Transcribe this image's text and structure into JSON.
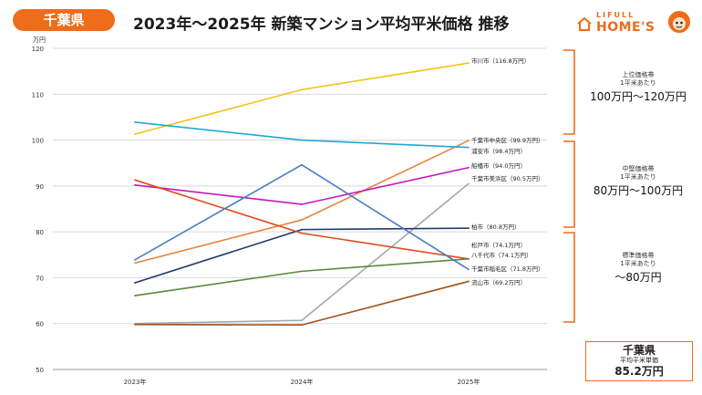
{
  "header": {
    "badge": "千葉県",
    "title": "2023年～2025年 新築マンション平均平米価格 推移"
  },
  "logo": {
    "line1": "LIFULL",
    "line2": "HOME'S",
    "brand_color": "#ee6c1a"
  },
  "chart_data": {
    "type": "line",
    "title": "2023年～2025年 新築マンション平均平米価格 推移",
    "unit_label": "万円",
    "categories": [
      "2023年",
      "2024年",
      "2025年"
    ],
    "ylim": [
      50,
      120
    ],
    "yticks": [
      50,
      60,
      70,
      80,
      90,
      100,
      110,
      120
    ],
    "grid": "horizontal",
    "series": [
      {
        "name": "市川市",
        "values": [
          101.3,
          111.0,
          116.8
        ],
        "end_label": "市川市（116.8万円）",
        "color": "#f0c419"
      },
      {
        "name": "千葉市中央区",
        "values": [
          73.2,
          82.6,
          99.9
        ],
        "end_label": "千葉市中央区（99.9万円）",
        "color": "#e8843c"
      },
      {
        "name": "浦安市",
        "values": [
          103.9,
          100.0,
          98.4
        ],
        "end_label": "浦安市（98.4万円）",
        "color": "#1fa8d8"
      },
      {
        "name": "船橋市",
        "values": [
          90.2,
          86.0,
          94.0
        ],
        "end_label": "船橋市（94.0万円）",
        "color": "#c418c4"
      },
      {
        "name": "千葉市美浜区",
        "values": [
          60.0,
          60.7,
          90.5
        ],
        "end_label": "千葉市美浜区（90.5万円）",
        "color": "#a8a8a8"
      },
      {
        "name": "柏市",
        "values": [
          68.9,
          80.5,
          80.8
        ],
        "end_label": "柏市（80.8万円）",
        "color": "#1f3a6e"
      },
      {
        "name": "松戸市",
        "values": [
          91.3,
          79.7,
          74.1
        ],
        "end_label": "松戸市（74.1万円）",
        "color": "#e04a1c"
      },
      {
        "name": "八千代市",
        "values": [
          66.1,
          71.4,
          74.1
        ],
        "end_label": "八千代市（74.1万円）",
        "color": "#5a8a3a"
      },
      {
        "name": "千葉市稲毛区",
        "values": [
          73.9,
          94.6,
          71.8
        ],
        "end_label": "千葉市稲毛区（71.8万円）",
        "color": "#4a7ec0"
      },
      {
        "name": "流山市",
        "values": [
          59.8,
          59.7,
          69.2
        ],
        "end_label": "流山市（69.2万円）",
        "color": "#a0501a"
      }
    ]
  },
  "tiers": [
    {
      "head": "上位価格帯",
      "sub": "1平米あたり",
      "range": "100万円～120万円"
    },
    {
      "head": "中堅価格帯",
      "sub": "1平米あたり",
      "range": "80万円～100万円"
    },
    {
      "head": "標準価格帯",
      "sub": "1平米あたり",
      "range": "～80万円"
    }
  ],
  "summary": {
    "pref": "千葉県",
    "label": "平均平米単価",
    "value": "85.2万円"
  },
  "bracket_color": "#ee6c1a"
}
